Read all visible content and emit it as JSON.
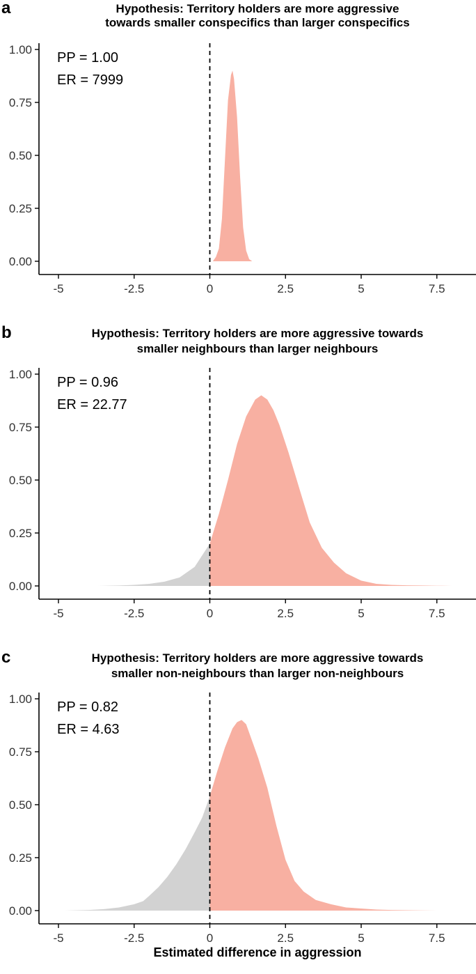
{
  "x_axis_title": "Estimated difference in aggression",
  "colors": {
    "positive": "#f8b0a2",
    "negative": "#d2d2d2",
    "axis": "#000000"
  },
  "chart_data": [
    {
      "type": "area",
      "panel": "a",
      "title_line1": "Hypothesis: Territory holders are more aggressive",
      "title_line2": "towards smaller conspecifics than larger conspecifics",
      "pp_label": "PP = 1.00",
      "er_label": "ER = 7999",
      "xlim": [
        -5,
        8.5
      ],
      "ylim": [
        0,
        1
      ],
      "x_ticks": [
        -5,
        -2.5,
        0,
        2.5,
        5,
        7.5
      ],
      "x_tick_labels": [
        "-5",
        "-2.5",
        "0",
        "2.5",
        "5",
        "7.5"
      ],
      "y_ticks": [
        0,
        0.25,
        0.5,
        0.75,
        1
      ],
      "y_tick_labels": [
        "0.00",
        "0.25",
        "0.50",
        "0.75",
        "1.00"
      ],
      "reference_line_x": 0,
      "density": {
        "x": [
          0.1,
          0.2,
          0.3,
          0.4,
          0.5,
          0.6,
          0.7,
          0.75,
          0.8,
          0.9,
          1.0,
          1.1,
          1.2,
          1.3,
          1.4
        ],
        "y": [
          0.0,
          0.02,
          0.06,
          0.2,
          0.48,
          0.76,
          0.88,
          0.9,
          0.86,
          0.68,
          0.4,
          0.16,
          0.05,
          0.01,
          0.0
        ]
      }
    },
    {
      "type": "area",
      "panel": "b",
      "title_line1": "Hypothesis: Territory holders are more aggressive towards",
      "title_line2": "smaller neighbours than larger neighbours",
      "pp_label": "PP = 0.96",
      "er_label": "ER = 22.77",
      "xlim": [
        -5,
        8.5
      ],
      "ylim": [
        0,
        1
      ],
      "x_ticks": [
        -5,
        -2.5,
        0,
        2.5,
        5,
        7.5
      ],
      "x_tick_labels": [
        "-5",
        "-2.5",
        "0",
        "2.5",
        "5",
        "7.5"
      ],
      "y_ticks": [
        0,
        0.25,
        0.5,
        0.75,
        1
      ],
      "y_tick_labels": [
        "0.00",
        "0.25",
        "0.50",
        "0.75",
        "1.00"
      ],
      "reference_line_x": 0,
      "density": {
        "x": [
          -3.7,
          -3.0,
          -2.5,
          -2.0,
          -1.5,
          -1.0,
          -0.5,
          0.0,
          0.3,
          0.6,
          0.9,
          1.2,
          1.5,
          1.7,
          1.9,
          2.1,
          2.3,
          2.6,
          3.0,
          3.3,
          3.7,
          4.1,
          4.5,
          5.0,
          5.5,
          6.0,
          6.5,
          7.0,
          7.5,
          8.0
        ],
        "y": [
          0.0,
          0.002,
          0.005,
          0.01,
          0.02,
          0.04,
          0.09,
          0.2,
          0.34,
          0.5,
          0.67,
          0.8,
          0.88,
          0.9,
          0.88,
          0.83,
          0.76,
          0.63,
          0.44,
          0.3,
          0.18,
          0.11,
          0.06,
          0.025,
          0.01,
          0.005,
          0.003,
          0.002,
          0.001,
          0.0
        ]
      }
    },
    {
      "type": "area",
      "panel": "c",
      "title_line1": "Hypothesis: Territory holders are more aggressive towards",
      "title_line2": "smaller non-neighbours than larger non-neighbours",
      "pp_label": "PP = 0.82",
      "er_label": "ER = 4.63",
      "xlim": [
        -5,
        8.5
      ],
      "ylim": [
        0,
        1
      ],
      "x_ticks": [
        -5,
        -2.5,
        0,
        2.5,
        5,
        7.5
      ],
      "x_tick_labels": [
        "-5",
        "-2.5",
        "0",
        "2.5",
        "5",
        "7.5"
      ],
      "y_ticks": [
        0,
        0.25,
        0.5,
        0.75,
        1
      ],
      "y_tick_labels": [
        "0.00",
        "0.25",
        "0.50",
        "0.75",
        "1.00"
      ],
      "reference_line_x": 0,
      "density": {
        "x": [
          -4.8,
          -4.0,
          -3.5,
          -3.0,
          -2.5,
          -2.2,
          -2.0,
          -1.7,
          -1.4,
          -1.1,
          -0.8,
          -0.5,
          -0.25,
          0.0,
          0.25,
          0.5,
          0.75,
          0.9,
          1.05,
          1.2,
          1.4,
          1.6,
          1.9,
          2.2,
          2.5,
          2.8,
          3.1,
          3.5,
          4.0,
          4.5,
          5.0,
          5.5,
          6.0,
          7.0,
          7.5
        ],
        "y": [
          0.0,
          0.003,
          0.007,
          0.015,
          0.03,
          0.045,
          0.07,
          0.11,
          0.16,
          0.22,
          0.29,
          0.37,
          0.44,
          0.54,
          0.66,
          0.77,
          0.86,
          0.89,
          0.9,
          0.88,
          0.8,
          0.72,
          0.58,
          0.4,
          0.24,
          0.14,
          0.09,
          0.05,
          0.03,
          0.015,
          0.01,
          0.005,
          0.003,
          0.001,
          0.0
        ]
      }
    }
  ]
}
